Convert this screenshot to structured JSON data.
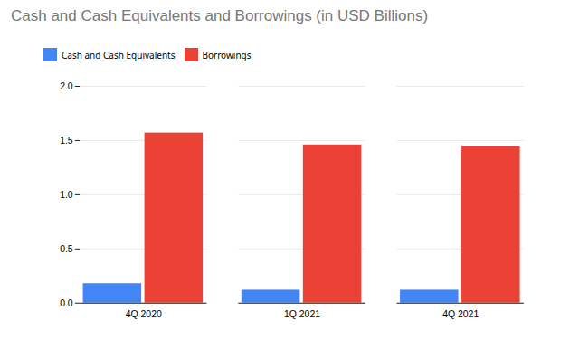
{
  "chart_data": {
    "type": "bar",
    "title": "Cash and Cash Equivalents and Borrowings (in USD Billions)",
    "categories": [
      "4Q 2020",
      "1Q 2021",
      "4Q 2021"
    ],
    "series": [
      {
        "name": "Cash and Cash Equivalents",
        "color": "#4285F4",
        "values": [
          0.18,
          0.12,
          0.12
        ]
      },
      {
        "name": "Borrowings",
        "color": "#EA4335",
        "values": [
          1.57,
          1.46,
          1.45
        ]
      }
    ],
    "ylim": [
      0,
      2.0
    ],
    "yticks": [
      {
        "value": 0,
        "label": "0.0"
      },
      0.5,
      {
        "value": 1,
        "label": "1.0"
      },
      1.5,
      {
        "value": 2,
        "label": "2.0"
      }
    ],
    "grid": true,
    "legend": "top"
  }
}
